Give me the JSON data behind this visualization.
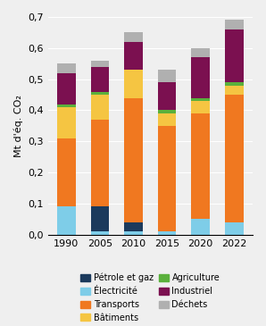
{
  "years": [
    "1990",
    "2005",
    "2010",
    "2015",
    "2020",
    "2022"
  ],
  "stack_order": [
    "Électricité",
    "Pétrole et gaz",
    "Transports",
    "Bâtiments",
    "Agriculture",
    "Industriel",
    "Déchets"
  ],
  "colors": {
    "Pétrole et gaz": "#1b3a5c",
    "Électricité": "#7ecde8",
    "Transports": "#f07820",
    "Bâtiments": "#f5c542",
    "Agriculture": "#5ab03c",
    "Industriel": "#7b1050",
    "Déchets": "#b0b0b0"
  },
  "data": {
    "Électricité": [
      0.09,
      0.01,
      0.01,
      0.01,
      0.05,
      0.04
    ],
    "Pétrole et gaz": [
      0.0,
      0.08,
      0.03,
      0.0,
      0.0,
      0.0
    ],
    "Transports": [
      0.22,
      0.28,
      0.4,
      0.34,
      0.34,
      0.41
    ],
    "Bâtiments": [
      0.1,
      0.08,
      0.09,
      0.04,
      0.04,
      0.03
    ],
    "Agriculture": [
      0.01,
      0.01,
      0.0,
      0.01,
      0.01,
      0.01
    ],
    "Industriel": [
      0.1,
      0.08,
      0.09,
      0.09,
      0.13,
      0.17
    ],
    "Déchets": [
      0.03,
      0.02,
      0.03,
      0.04,
      0.03,
      0.03
    ]
  },
  "legend_order": [
    "Pétrole et gaz",
    "Électricité",
    "Transports",
    "Bâtiments",
    "Agriculture",
    "Industriel",
    "Déchets"
  ],
  "ylabel": "Mt d'éq. CO₂",
  "ylim": [
    0,
    0.7
  ],
  "yticks": [
    0.0,
    0.1,
    0.2,
    0.3,
    0.4,
    0.5,
    0.6,
    0.7
  ],
  "ytick_labels": [
    "0,0",
    "0,1",
    "0,2",
    "0,3",
    "0,4",
    "0,5",
    "0,6",
    "0,7"
  ],
  "background_color": "#efefef",
  "bar_width": 0.55
}
